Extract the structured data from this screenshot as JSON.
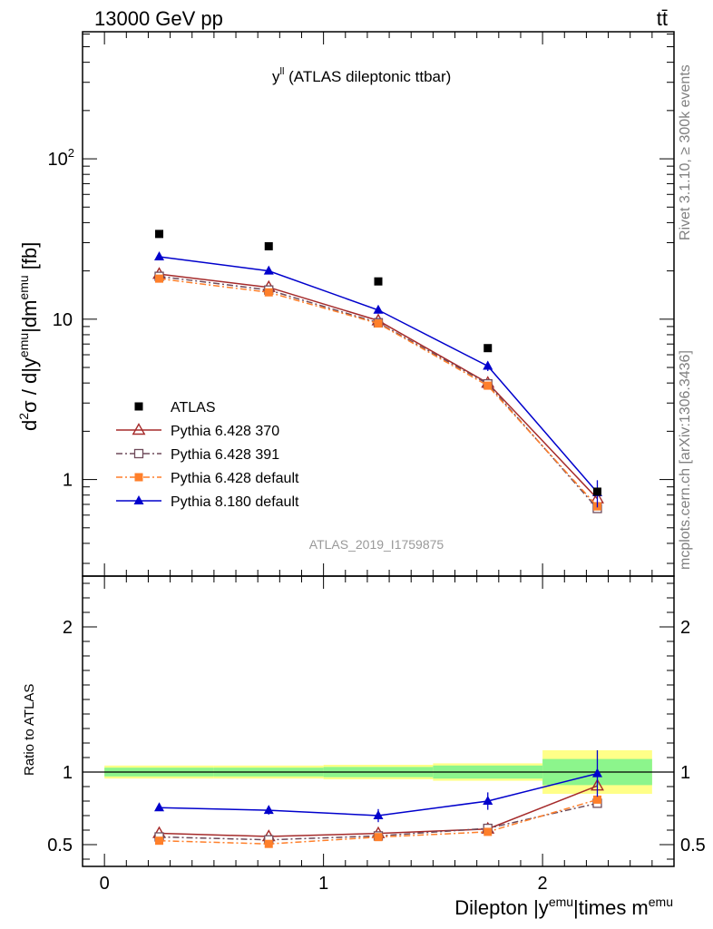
{
  "header": {
    "energy_label": "13000 GeV pp",
    "process_label": "tt̄"
  },
  "side_labels": {
    "rivet": "Rivet 3.1.10, ≥ 300k events",
    "source": "mcplots.cern.ch [arXiv:1306.3436]"
  },
  "chart_data": {
    "type": "line",
    "title_main": "y",
    "title_sup": "ll",
    "title_rest": " (ATLAS dileptonic ttbar)",
    "analysis_tag": "ATLAS_2019_I1759875",
    "xlabel": {
      "pre": "Dilepton |y",
      "sup1": "emu",
      "mid": "|times m",
      "sup2": "emu"
    },
    "ylabel": {
      "d": "d",
      "d_sup": "2",
      "mid": "σ / d|y",
      "sup1": "emu",
      "mid2": "|dm",
      "sup2": "emu",
      "unit": " [fb]"
    },
    "ratio_ylabel": "Ratio to ATLAS",
    "xlim": [
      -0.1,
      2.6
    ],
    "ylim": [
      0.25,
      620
    ],
    "ylog": true,
    "ratio_ylim": [
      0.35,
      2.35
    ],
    "x_ticks": [
      "0",
      "1",
      "2"
    ],
    "y_ticks": [
      {
        "value": 1,
        "label": "1"
      },
      {
        "value": 10,
        "label": "10"
      },
      {
        "value": 100,
        "label": "10",
        "sup": "2"
      }
    ],
    "ratio_ticks": [
      {
        "value": 0.5,
        "label": "0.5"
      },
      {
        "value": 1,
        "label": "1"
      },
      {
        "value": 2,
        "label": "2"
      }
    ],
    "bins": [
      [
        0,
        0.5
      ],
      [
        0.5,
        1.0
      ],
      [
        1.0,
        1.5
      ],
      [
        1.5,
        2.0
      ],
      [
        2.0,
        2.5
      ]
    ],
    "x": [
      0.25,
      0.75,
      1.25,
      1.75,
      2.25
    ],
    "band_stat": [
      0.03,
      0.03,
      0.035,
      0.045,
      0.09
    ],
    "band_total": [
      0.045,
      0.045,
      0.05,
      0.06,
      0.15
    ],
    "series": [
      {
        "name": "ATLAS",
        "color": "#000000",
        "marker": "square",
        "values": [
          34,
          28.5,
          17.2,
          6.6,
          0.84
        ],
        "line": "none"
      },
      {
        "name": "Pythia 6.428 370",
        "color": "#a52a2a",
        "marker": "triangle-open",
        "values": [
          19.1,
          15.8,
          9.8,
          4.0,
          0.76
        ],
        "line": "solid"
      },
      {
        "name": "Pythia 6.428 391",
        "color": "#6e4a5a",
        "marker": "square-open",
        "values": [
          18.5,
          15.2,
          9.5,
          3.95,
          0.66
        ],
        "line": "dashdot"
      },
      {
        "name": "Pythia 6.428 default",
        "color": "#ff7f2a",
        "marker": "square",
        "values": [
          17.9,
          14.7,
          9.4,
          3.85,
          0.68
        ],
        "line": "dashdot"
      },
      {
        "name": "Pythia 8.180 default",
        "color": "#0000cc",
        "marker": "triangle",
        "values": [
          24.5,
          20.0,
          11.4,
          5.1,
          0.83
        ],
        "line": "solid",
        "err": [
          0.6,
          0.5,
          0.5,
          0.35,
          0.16
        ]
      }
    ],
    "ratio_series": [
      {
        "name": "Pythia 6.428 370",
        "values": [
          0.578,
          0.556,
          0.577,
          0.608,
          0.905
        ]
      },
      {
        "name": "Pythia 6.428 391",
        "values": [
          0.553,
          0.533,
          0.56,
          0.612,
          0.785
        ]
      },
      {
        "name": "Pythia 6.428 default",
        "values": [
          0.527,
          0.505,
          0.552,
          0.588,
          0.81
        ]
      },
      {
        "name": "Pythia 8.180 default",
        "values": [
          0.755,
          0.737,
          0.7,
          0.8,
          0.99
        ],
        "err": [
          0.022,
          0.03,
          0.045,
          0.06,
          0.16
        ]
      }
    ]
  }
}
